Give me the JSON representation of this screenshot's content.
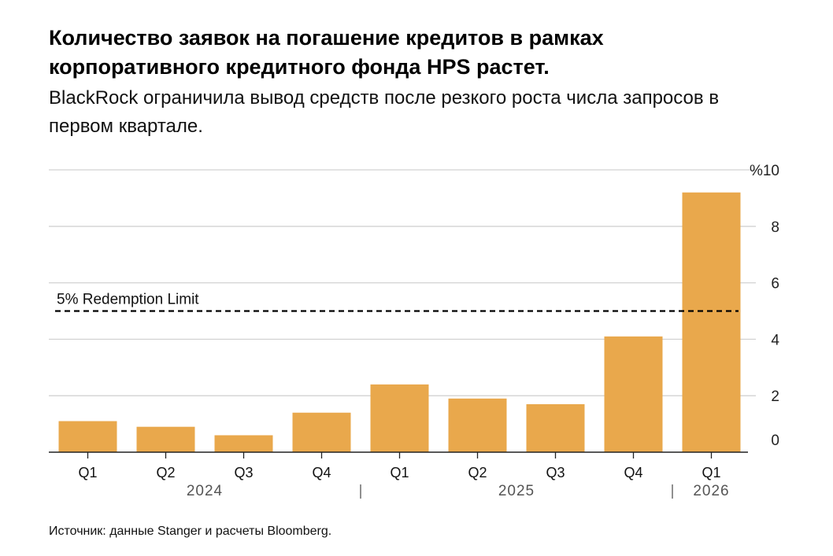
{
  "chart_data": {
    "type": "bar",
    "title": "Количество заявок на погашение кредитов в рамках корпоративного кредитного фонда HPS растет.",
    "subtitle": "BlackRock ограничила вывод средств после резкого роста числа запросов в первом квартале.",
    "categories": [
      "Q1",
      "Q2",
      "Q3",
      "Q4",
      "Q1",
      "Q2",
      "Q3",
      "Q4",
      "Q1"
    ],
    "year_groups": [
      {
        "label": "2024",
        "start": 0,
        "end": 3
      },
      {
        "label": "2025",
        "start": 4,
        "end": 7
      },
      {
        "label": "2026",
        "start": 8,
        "end": 8
      }
    ],
    "values": [
      1.1,
      0.9,
      0.6,
      1.4,
      2.4,
      1.9,
      1.7,
      4.1,
      9.2
    ],
    "ylim": [
      0,
      10
    ],
    "yticks": [
      0,
      2,
      4,
      6,
      8,
      10
    ],
    "ytick_labels": [
      "0",
      "2",
      "4",
      "6",
      "8",
      "%10"
    ],
    "reference_line": {
      "value": 5,
      "label": "5% Redemption Limit",
      "style": "dashed"
    },
    "bar_color": "#E9A84C",
    "grid_color": "#d2d2d2",
    "grid": true,
    "xlabel": "",
    "ylabel": "",
    "source": "Источник: данные Stanger и расчеты Bloomberg."
  }
}
